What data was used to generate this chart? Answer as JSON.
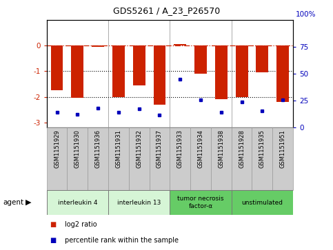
{
  "title": "GDS5261 / A_23_P26570",
  "samples": [
    "GSM1151929",
    "GSM1151930",
    "GSM1151936",
    "GSM1151931",
    "GSM1151932",
    "GSM1151937",
    "GSM1151933",
    "GSM1151934",
    "GSM1151938",
    "GSM1151928",
    "GSM1151935",
    "GSM1151951"
  ],
  "log2_ratios": [
    -1.75,
    -2.05,
    -0.05,
    -2.0,
    -1.55,
    -2.3,
    0.07,
    -1.1,
    -2.1,
    -2.0,
    -1.05,
    -2.2
  ],
  "percentile_ranks": [
    10,
    8,
    14,
    10,
    13,
    7,
    42,
    22,
    10,
    20,
    11,
    22
  ],
  "groups": [
    {
      "label": "interleukin 4",
      "start": 0,
      "end": 3,
      "color": "#d6f5d6"
    },
    {
      "label": "interleukin 13",
      "start": 3,
      "end": 6,
      "color": "#d6f5d6"
    },
    {
      "label": "tumor necrosis\nfactor-α",
      "start": 6,
      "end": 9,
      "color": "#66cc66"
    },
    {
      "label": "unstimulated",
      "start": 9,
      "end": 12,
      "color": "#66cc66"
    }
  ],
  "bar_color": "#cc2200",
  "dot_color": "#0000bb",
  "ylim_left": [
    -3.2,
    1.0
  ],
  "left_yticks": [
    0,
    -1,
    -2,
    -3
  ],
  "right_yticks": [
    75,
    50,
    25,
    0
  ],
  "dotted_lines": [
    -1.0,
    -2.0
  ],
  "sample_cell_color": "#cccccc",
  "sample_cell_border": "#999999"
}
